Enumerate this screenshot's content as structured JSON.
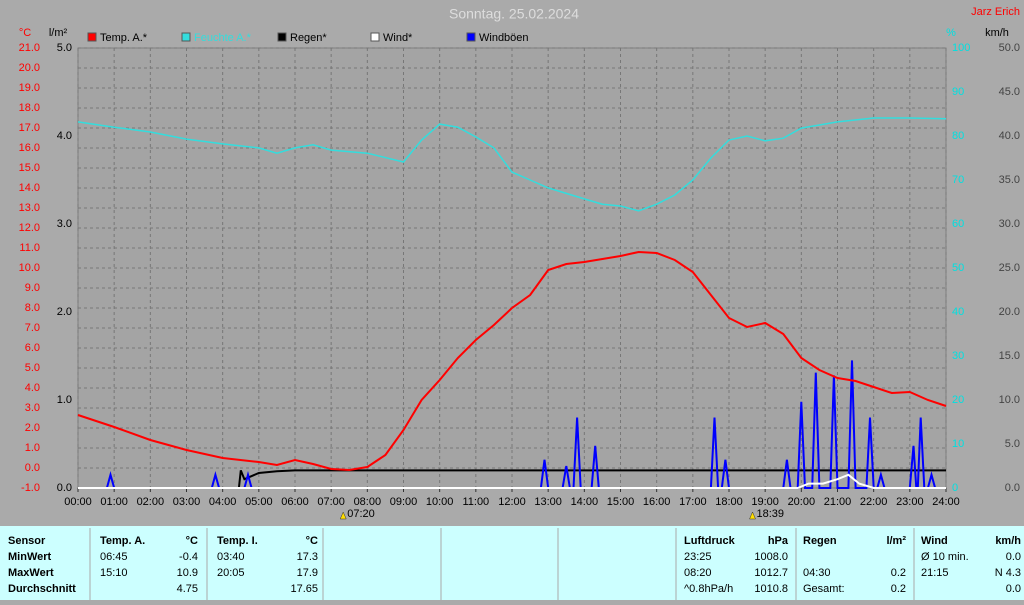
{
  "chart_data": {
    "type": "line",
    "title": "Sonntag. 25.02.2024",
    "author": "Jarz Erich",
    "axis_labels": {
      "y": "°C",
      "y2": "l/m²",
      "y3": "%",
      "y4": "km/h"
    },
    "xlim": [
      0,
      24
    ],
    "xticks": [
      {
        "value": 0,
        "label": "00:00"
      },
      {
        "value": 1,
        "label": "01:00"
      },
      {
        "value": 2,
        "label": "02:00"
      },
      {
        "value": 3,
        "label": "03:00"
      },
      {
        "value": 4,
        "label": "04:00"
      },
      {
        "value": 5,
        "label": "05:00"
      },
      {
        "value": 6,
        "label": "06:00"
      },
      {
        "value": 7,
        "label": "07:00"
      },
      {
        "value": 8,
        "label": "08:00"
      },
      {
        "value": 9,
        "label": "09:00"
      },
      {
        "value": 10,
        "label": "10:00"
      },
      {
        "value": 11,
        "label": "11:00"
      },
      {
        "value": 12,
        "label": "12:00"
      },
      {
        "value": 13,
        "label": "13:00"
      },
      {
        "value": 14,
        "label": "14:00"
      },
      {
        "value": 15,
        "label": "15:00"
      },
      {
        "value": 16,
        "label": "16:00"
      },
      {
        "value": 17,
        "label": "17:00"
      },
      {
        "value": 18,
        "label": "18:00"
      },
      {
        "value": 19,
        "label": "19:00"
      },
      {
        "value": 20,
        "label": "20:00"
      },
      {
        "value": 21,
        "label": "21:00"
      },
      {
        "value": 22,
        "label": "22:00"
      },
      {
        "value": 23,
        "label": "23:00"
      },
      {
        "value": 24,
        "label": "24:00"
      }
    ],
    "ylim": [
      -1,
      21
    ],
    "yticks": [
      {
        "value": -1,
        "label": "-1.0"
      },
      {
        "value": 0,
        "label": "0.0"
      },
      {
        "value": 1,
        "label": "1.0"
      },
      {
        "value": 2,
        "label": "2.0"
      },
      {
        "value": 3,
        "label": "3.0"
      },
      {
        "value": 4,
        "label": "4.0"
      },
      {
        "value": 5,
        "label": "5.0"
      },
      {
        "value": 6,
        "label": "6.0"
      },
      {
        "value": 7,
        "label": "7.0"
      },
      {
        "value": 8,
        "label": "8.0"
      },
      {
        "value": 9,
        "label": "9.0"
      },
      {
        "value": 10,
        "label": "10.0"
      },
      {
        "value": 11,
        "label": "11.0"
      },
      {
        "value": 12,
        "label": "12.0"
      },
      {
        "value": 13,
        "label": "13.0"
      },
      {
        "value": 14,
        "label": "14.0"
      },
      {
        "value": 15,
        "label": "15.0"
      },
      {
        "value": 16,
        "label": "16.0"
      },
      {
        "value": 17,
        "label": "17.0"
      },
      {
        "value": 18,
        "label": "18.0"
      },
      {
        "value": 19,
        "label": "19.0"
      },
      {
        "value": 20,
        "label": "20.0"
      },
      {
        "value": 21,
        "label": "21.0"
      }
    ],
    "y2lim": [
      0,
      5
    ],
    "y2ticks": [
      {
        "value": 0,
        "label": "0.0"
      },
      {
        "value": 1,
        "label": "1.0"
      },
      {
        "value": 2,
        "label": "2.0"
      },
      {
        "value": 3,
        "label": "3.0"
      },
      {
        "value": 4,
        "label": "4.0"
      },
      {
        "value": 5,
        "label": "5.0"
      }
    ],
    "y3lim": [
      0,
      100
    ],
    "y3ticks": [
      0,
      10,
      20,
      30,
      40,
      50,
      60,
      70,
      80,
      90,
      100
    ],
    "y4lim": [
      0,
      50
    ],
    "y4ticks": [
      {
        "value": 0,
        "label": "0.0"
      },
      {
        "value": 5,
        "label": "5.0"
      },
      {
        "value": 10,
        "label": "10.0"
      },
      {
        "value": 15,
        "label": "15.0"
      },
      {
        "value": 20,
        "label": "20.0"
      },
      {
        "value": 25,
        "label": "25.0"
      },
      {
        "value": 30,
        "label": "30.0"
      },
      {
        "value": 35,
        "label": "35.0"
      },
      {
        "value": 40,
        "label": "40.0"
      },
      {
        "value": 45,
        "label": "45.0"
      },
      {
        "value": 50,
        "label": "50.0"
      }
    ],
    "grid": true,
    "axis_colors": {
      "y": "#ff0000",
      "y2": "#000000",
      "y3": "#00e0e0",
      "y4": "#444444"
    },
    "series": [
      {
        "name": "Temp. A.*",
        "color": "#ff0000",
        "axis": "y",
        "width": 2,
        "x": [
          0,
          1,
          2,
          3,
          4,
          5,
          5.5,
          6,
          6.5,
          7,
          7.5,
          8,
          8.5,
          9,
          9.5,
          10,
          10.5,
          11,
          11.5,
          12,
          12.5,
          13,
          13.5,
          14,
          14.5,
          15,
          15.5,
          16,
          16.5,
          17,
          17.5,
          18,
          18.5,
          19,
          19.5,
          20,
          20.5,
          21,
          21.5,
          22,
          22.5,
          23,
          23.5,
          24
        ],
        "values": [
          2.65,
          2.05,
          1.4,
          0.9,
          0.5,
          0.3,
          0.15,
          0.4,
          0.2,
          -0.05,
          -0.1,
          0.05,
          0.65,
          1.9,
          3.4,
          4.4,
          5.5,
          6.4,
          7.15,
          8.0,
          8.65,
          9.9,
          10.2,
          10.3,
          10.45,
          10.6,
          10.8,
          10.75,
          10.4,
          9.8,
          8.65,
          7.5,
          7.05,
          7.25,
          6.7,
          5.5,
          4.9,
          4.5,
          4.35,
          4.05,
          3.75,
          3.8,
          3.4,
          3.1
        ]
      },
      {
        "name": "Feuchte A.*",
        "color": "#33dddd",
        "axis": "y3",
        "width": 1.5,
        "x": [
          0,
          1,
          2,
          3,
          4,
          5,
          5.5,
          6,
          6.5,
          7,
          8,
          9,
          9.5,
          10,
          10.5,
          11,
          11.5,
          12,
          12.5,
          13,
          14,
          14.5,
          15,
          15.5,
          16,
          16.5,
          17,
          17.5,
          18,
          18.5,
          19,
          19.5,
          20,
          20.5,
          21,
          22,
          23,
          24
        ],
        "values": [
          83.2,
          82,
          80.9,
          79.3,
          78.2,
          77.3,
          76.1,
          77.3,
          78,
          76.8,
          76.1,
          74.1,
          79.1,
          82.7,
          82,
          79.8,
          77.3,
          71.8,
          70,
          68.2,
          65.7,
          64.5,
          64.1,
          63,
          64.5,
          66.6,
          70,
          75,
          79.1,
          80,
          78.9,
          79.5,
          81.8,
          82.5,
          83.2,
          84.1,
          84.1,
          83.9
        ]
      },
      {
        "name": "Regen*",
        "color": "#000000",
        "axis": "y2",
        "width": 2,
        "x": [
          0,
          4.45,
          4.5,
          4.6,
          5,
          5.5,
          6,
          24
        ],
        "values": [
          0,
          0,
          0.2,
          0.1,
          0.17,
          0.19,
          0.2,
          0.2
        ]
      },
      {
        "name": "Wind*",
        "color": "#ffffff",
        "axis": "y4",
        "width": 2,
        "x": [
          0,
          19.9,
          20.2,
          20.6,
          21,
          21.3,
          21.6,
          22,
          24
        ],
        "values": [
          0,
          0,
          0.5,
          0.5,
          1.0,
          1.5,
          0.5,
          0,
          0
        ]
      },
      {
        "name": "Windböen",
        "color": "#0000ff",
        "axis": "y4",
        "width": 2,
        "x": [
          0,
          0.8,
          0.9,
          1.0,
          3.7,
          3.8,
          3.9,
          4.6,
          4.7,
          4.8,
          12.8,
          12.9,
          13.0,
          13.4,
          13.5,
          13.6,
          13.7,
          13.8,
          13.9,
          14.2,
          14.3,
          14.4,
          17.5,
          17.6,
          17.7,
          17.8,
          17.9,
          18.0,
          19.5,
          19.6,
          19.7,
          19.9,
          20.0,
          20.1,
          20.3,
          20.4,
          20.5,
          20.8,
          20.9,
          21.0,
          21.3,
          21.4,
          21.5,
          21.8,
          21.9,
          22.0,
          22.1,
          22.2,
          22.3,
          23.0,
          23.1,
          23.18,
          23.22,
          23.3,
          23.4,
          23.5,
          23.6,
          23.7,
          24
        ],
        "values": [
          0,
          0,
          1.5,
          0,
          0,
          1.5,
          0,
          0,
          1.5,
          0,
          0,
          3.2,
          0,
          0,
          2.5,
          0,
          0,
          8,
          0,
          0,
          4.8,
          0,
          0,
          8,
          0,
          0,
          3.2,
          0,
          0,
          3.2,
          0,
          0,
          9.8,
          0,
          0,
          13.1,
          0,
          0,
          12.8,
          0,
          0,
          14.5,
          0,
          0,
          8,
          0,
          0,
          1.5,
          0,
          0,
          4.8,
          0,
          0,
          8,
          0,
          0,
          1.5,
          0,
          0
        ]
      }
    ],
    "annotations": [
      {
        "x": 7.333,
        "label": "07:20"
      },
      {
        "x": 18.65,
        "label": "18:39"
      }
    ]
  },
  "table": {
    "header": [
      "Sensor",
      "Temp. A.",
      "°C",
      "Temp. I.",
      "°C",
      "Luftdruck",
      "hPa",
      "Regen",
      "l/m²",
      "Wind",
      "km/h"
    ],
    "rows": [
      [
        "MinWert",
        "06:45",
        "-0.4",
        "03:40",
        "17.3",
        "23:25",
        "1008.0",
        null,
        null,
        "Ø 10 min.",
        "0.0"
      ],
      [
        "MaxWert",
        "15:10",
        "10.9",
        "20:05",
        "17.9",
        "08:20",
        "1012.7",
        "04:30",
        "0.2",
        "21:15",
        "N 4.3"
      ],
      [
        "Durchschnitt",
        null,
        "4.75",
        null,
        "17.65",
        "^0.8hPa/h",
        "1010.8",
        "Gesamt:",
        "0.2",
        null,
        "0.0"
      ]
    ]
  }
}
